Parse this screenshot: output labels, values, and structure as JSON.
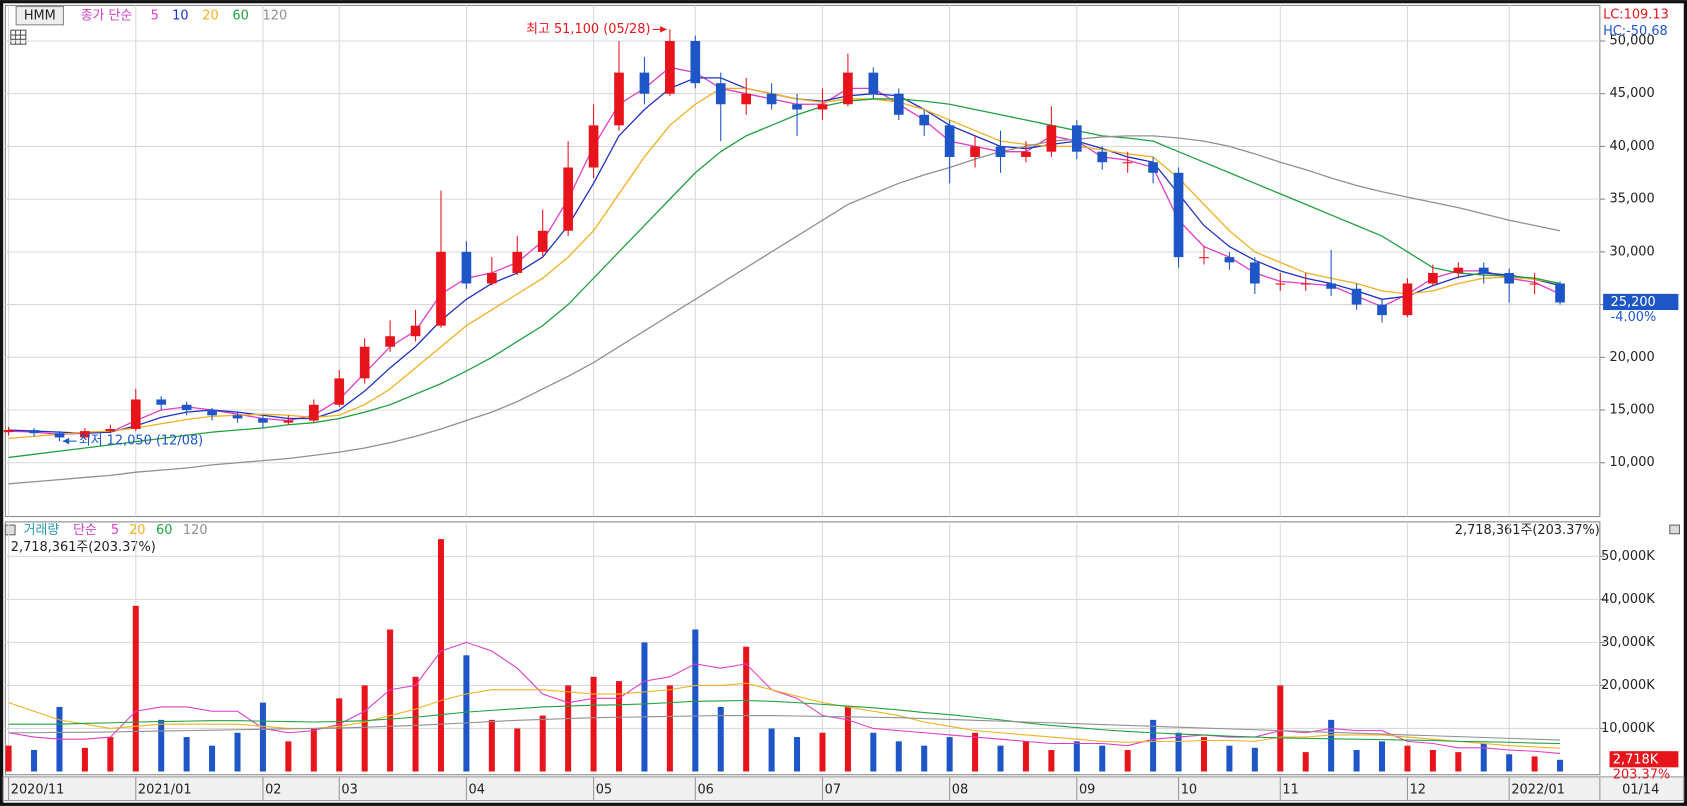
{
  "header": {
    "symbol": "HMM"
  },
  "chart_data": [
    {
      "type": "candlestick",
      "legend_prefix": "종가 단순",
      "up_color": "#e8141b",
      "down_color": "#1e56c8",
      "open": [
        12900,
        13100,
        12800,
        12400,
        13000,
        13200,
        16000,
        15500,
        15000,
        14500,
        14200,
        13800,
        14000,
        15500,
        18000,
        21000,
        22000,
        23000,
        30000,
        27000,
        28000,
        30000,
        32000,
        38000,
        42000,
        47000,
        45000,
        50000,
        46000,
        44000,
        45000,
        44000,
        43500,
        44000,
        47000,
        45000,
        43000,
        42000,
        39000,
        40000,
        39000,
        39500,
        42000,
        39500,
        38500,
        38500,
        37500,
        29500,
        29500,
        29000,
        27000,
        27000,
        27000,
        26500,
        25000,
        24000,
        27000,
        28000,
        28500,
        28000,
        27000,
        27000
      ],
      "high": [
        13400,
        13300,
        13000,
        13300,
        13600,
        17000,
        16300,
        15800,
        15200,
        14800,
        14500,
        14500,
        16000,
        18800,
        21800,
        23500,
        24500,
        35800,
        31000,
        29500,
        31500,
        34000,
        40500,
        44000,
        50000,
        48500,
        51100,
        50500,
        47000,
        46500,
        46000,
        45000,
        45500,
        48800,
        47500,
        45500,
        43500,
        42500,
        41000,
        41500,
        40500,
        43800,
        42500,
        40000,
        39500,
        39000,
        38000,
        30500,
        30000,
        29500,
        28000,
        28000,
        30200,
        27000,
        25500,
        27500,
        28800,
        29000,
        29000,
        28400,
        28000,
        27200
      ],
      "low": [
        12600,
        12500,
        12050,
        12300,
        12800,
        13000,
        15000,
        14500,
        14000,
        13800,
        13300,
        13600,
        13800,
        15300,
        17500,
        20500,
        21500,
        22800,
        26500,
        26800,
        27800,
        29500,
        31500,
        37000,
        41500,
        44000,
        44800,
        45500,
        40500,
        43000,
        43500,
        41000,
        42500,
        43800,
        44500,
        42500,
        41000,
        36500,
        38000,
        37500,
        38500,
        39000,
        38800,
        37800,
        37500,
        36500,
        28500,
        28800,
        28300,
        26000,
        26300,
        26300,
        25800,
        24500,
        23300,
        23800,
        26800,
        27500,
        27000,
        25200,
        26000,
        25000
      ],
      "close": [
        13100,
        12800,
        12400,
        13000,
        13200,
        16000,
        15500,
        15000,
        14500,
        14200,
        13800,
        14000,
        15500,
        18000,
        21000,
        22000,
        23000,
        30000,
        27000,
        28000,
        30000,
        32000,
        38000,
        42000,
        47000,
        45000,
        50000,
        46000,
        44000,
        45000,
        44000,
        43500,
        44000,
        47000,
        45000,
        43000,
        42000,
        39000,
        40000,
        39000,
        39500,
        42000,
        39500,
        38500,
        38500,
        37500,
        29500,
        29500,
        29000,
        27000,
        27000,
        27000,
        26500,
        25000,
        24000,
        27000,
        28000,
        28500,
        28000,
        27000,
        27000,
        25200
      ],
      "series": [
        {
          "name": "5",
          "color": "#e03cc8",
          "values": [
            13000,
            12900,
            12700,
            12800,
            12900,
            14000,
            15000,
            15300,
            15000,
            14600,
            14200,
            14000,
            14500,
            16000,
            18500,
            21000,
            22500,
            26000,
            27500,
            28000,
            29000,
            31000,
            35000,
            40000,
            44000,
            45500,
            47500,
            47000,
            45500,
            45000,
            44500,
            44000,
            44000,
            45500,
            45500,
            44000,
            42500,
            40500,
            40000,
            39500,
            39500,
            41000,
            40500,
            39000,
            38700,
            38000,
            33000,
            30500,
            29500,
            28000,
            27200,
            27000,
            26800,
            25800,
            24800,
            26000,
            27500,
            28200,
            28200,
            27500,
            27100,
            26000
          ]
        },
        {
          "name": "10",
          "color": "#2030c0",
          "values": [
            13100,
            13000,
            12900,
            12800,
            12900,
            13500,
            14300,
            14800,
            15000,
            14800,
            14500,
            14200,
            14200,
            15000,
            16800,
            19000,
            21000,
            23500,
            25500,
            27000,
            28000,
            29500,
            32500,
            36500,
            41000,
            43500,
            45500,
            46500,
            46500,
            45500,
            45000,
            44500,
            44300,
            44800,
            45000,
            44800,
            43500,
            42000,
            41000,
            40000,
            39800,
            40200,
            40500,
            39800,
            39000,
            38500,
            35500,
            32500,
            30500,
            29200,
            28200,
            27500,
            27000,
            26300,
            25500,
            25800,
            26800,
            27600,
            28000,
            27800,
            27400,
            26800
          ]
        },
        {
          "name": "20",
          "color": "#f0b020",
          "values": [
            12300,
            12500,
            12700,
            12900,
            13000,
            13300,
            13700,
            14100,
            14400,
            14500,
            14600,
            14500,
            14300,
            14500,
            15500,
            17000,
            19000,
            21000,
            23000,
            24500,
            26000,
            27500,
            29500,
            32000,
            35500,
            39000,
            42000,
            44000,
            45500,
            45500,
            45000,
            44500,
            44200,
            44500,
            44500,
            44200,
            43500,
            42500,
            41500,
            40500,
            40200,
            40000,
            40000,
            39700,
            39300,
            39000,
            37000,
            34500,
            32000,
            30000,
            29000,
            28000,
            27500,
            27000,
            26300,
            26000,
            26300,
            27000,
            27500,
            27600,
            27400,
            27000
          ]
        },
        {
          "name": "60",
          "color": "#20a040",
          "values": [
            10500,
            10800,
            11100,
            11400,
            11700,
            12000,
            12300,
            12600,
            12900,
            13100,
            13300,
            13600,
            13800,
            14200,
            14800,
            15500,
            16500,
            17500,
            18700,
            20000,
            21500,
            23000,
            25000,
            27500,
            30000,
            32500,
            35000,
            37500,
            39500,
            41000,
            42000,
            43000,
            43800,
            44300,
            44500,
            44500,
            44300,
            44000,
            43500,
            43000,
            42500,
            42000,
            41500,
            41000,
            40800,
            40500,
            39500,
            38500,
            37500,
            36500,
            35500,
            34500,
            33500,
            32500,
            31500,
            30000,
            28500,
            28000,
            27800,
            27700,
            27500,
            27000
          ]
        },
        {
          "name": "120",
          "color": "#909090",
          "values": [
            8000,
            8200,
            8400,
            8600,
            8800,
            9100,
            9300,
            9500,
            9800,
            10000,
            10200,
            10400,
            10700,
            11000,
            11400,
            11900,
            12500,
            13200,
            14000,
            14800,
            15800,
            17000,
            18200,
            19500,
            21000,
            22500,
            24000,
            25500,
            27000,
            28500,
            30000,
            31500,
            33000,
            34500,
            35500,
            36500,
            37300,
            38000,
            38800,
            39500,
            40000,
            40500,
            40700,
            40900,
            41000,
            41000,
            40800,
            40500,
            40000,
            39300,
            38500,
            37800,
            37000,
            36300,
            35700,
            35200,
            34700,
            34200,
            33600,
            33000,
            32500,
            32000
          ]
        }
      ],
      "ylim": [
        4900,
        53370
      ],
      "yticks": [
        {
          "value": 10000,
          "label": "10,000"
        },
        {
          "value": 15000,
          "label": "15,000"
        },
        {
          "value": 20000,
          "label": "20,000"
        },
        {
          "value": 25000,
          "label": "25,000"
        },
        {
          "value": 30000,
          "label": "30,000"
        },
        {
          "value": 35000,
          "label": "35,000"
        },
        {
          "value": 40000,
          "label": "40,000"
        },
        {
          "value": 45000,
          "label": "45,000"
        },
        {
          "value": 50000,
          "label": "50,000"
        }
      ],
      "grid": true,
      "annotations": {
        "high_label": "최고 51,100 (05/28)",
        "low_label": "최저 12,050 (12/08)"
      },
      "last_price_label": "25,200",
      "change_label": "-4.00%",
      "indicators": {
        "lc": "LC:109.13",
        "hc": "HC:-50.68"
      }
    },
    {
      "type": "bar",
      "legend_prefix": "거래량",
      "legend_method": "단순",
      "summary": "2,718,361주(203.37%)",
      "categories": [
        "2020/11",
        null,
        null,
        null,
        null,
        "2021/01",
        null,
        null,
        null,
        null,
        "02",
        null,
        null,
        "03",
        null,
        null,
        null,
        null,
        "04",
        null,
        null,
        null,
        null,
        "05",
        null,
        null,
        null,
        "06",
        null,
        null,
        null,
        null,
        "07",
        null,
        null,
        null,
        null,
        "08",
        null,
        null,
        null,
        null,
        "09",
        null,
        null,
        null,
        "10",
        null,
        null,
        null,
        "11",
        null,
        null,
        null,
        null,
        "12",
        null,
        null,
        null,
        "2022/01",
        null,
        null
      ],
      "values": [
        6000,
        5000,
        15000,
        5500,
        8000,
        38500,
        12000,
        8000,
        6000,
        9000,
        16000,
        7000,
        10000,
        17000,
        20000,
        33000,
        22000,
        54000,
        27000,
        12000,
        10000,
        13000,
        20000,
        22000,
        21000,
        30000,
        20000,
        33000,
        15000,
        29000,
        10000,
        8000,
        9000,
        15000,
        9000,
        7000,
        6000,
        8000,
        9000,
        6000,
        7000,
        5000,
        7000,
        6000,
        5000,
        12000,
        9000,
        8000,
        6000,
        5500,
        20000,
        4500,
        12000,
        5000,
        7000,
        6000,
        5000,
        4500,
        6500,
        4000,
        3500,
        2718
      ],
      "series": [
        {
          "name": "5",
          "color": "#e03cc8",
          "values": [
            9000,
            8000,
            7500,
            7500,
            8000,
            14000,
            15000,
            15000,
            14000,
            14000,
            10000,
            9000,
            9500,
            11000,
            14000,
            19000,
            20000,
            28000,
            30000,
            28000,
            24000,
            18000,
            16000,
            17000,
            17000,
            21000,
            22000,
            25000,
            24000,
            25000,
            19000,
            17000,
            13000,
            12000,
            10000,
            9500,
            9000,
            8500,
            8000,
            7500,
            7000,
            6500,
            6500,
            6500,
            6000,
            7500,
            8000,
            8500,
            8000,
            8000,
            9500,
            9000,
            10000,
            9500,
            9500,
            7000,
            6500,
            5500,
            5500,
            5000,
            4700,
            4200
          ]
        },
        {
          "name": "20",
          "color": "#f0b020",
          "values": [
            16000,
            14000,
            12000,
            11000,
            10000,
            10500,
            11000,
            11000,
            11000,
            11000,
            10500,
            10000,
            10000,
            10500,
            11500,
            13000,
            14500,
            16500,
            18000,
            19000,
            19000,
            19000,
            18500,
            18000,
            18000,
            18500,
            19000,
            20000,
            20000,
            20500,
            19000,
            17500,
            16000,
            15000,
            14000,
            13000,
            11500,
            10500,
            9500,
            9000,
            8500,
            8000,
            7500,
            7000,
            6800,
            7000,
            7000,
            7200,
            7200,
            7000,
            8000,
            8000,
            8500,
            8500,
            8500,
            8000,
            7500,
            7000,
            6500,
            6000,
            5700,
            5400
          ]
        },
        {
          "name": "60",
          "color": "#20a040",
          "values": [
            11000,
            11000,
            11000,
            11200,
            11300,
            11500,
            11600,
            11700,
            11800,
            11800,
            11700,
            11600,
            11500,
            11600,
            11800,
            12200,
            12600,
            13200,
            13800,
            14200,
            14600,
            15000,
            15200,
            15400,
            15500,
            15700,
            16000,
            16300,
            16400,
            16500,
            16300,
            16000,
            15600,
            15200,
            14800,
            14300,
            13700,
            13200,
            12600,
            12000,
            11300,
            10700,
            10200,
            9700,
            9300,
            9000,
            8700,
            8500,
            8200,
            8000,
            7800,
            7700,
            7600,
            7500,
            7400,
            7300,
            7200,
            7000,
            6900,
            6800,
            6600,
            6500
          ]
        },
        {
          "name": "120",
          "color": "#909090",
          "values": [
            9000,
            9000,
            9100,
            9100,
            9200,
            9300,
            9400,
            9500,
            9600,
            9700,
            9800,
            9900,
            10000,
            10100,
            10300,
            10500,
            10700,
            11000,
            11300,
            11600,
            11900,
            12100,
            12300,
            12500,
            12600,
            12700,
            12800,
            12900,
            13000,
            13000,
            13000,
            12900,
            12800,
            12700,
            12600,
            12500,
            12300,
            12100,
            11900,
            11700,
            11500,
            11300,
            11100,
            10900,
            10700,
            10500,
            10300,
            10100,
            9900,
            9700,
            9500,
            9300,
            9100,
            8900,
            8700,
            8500,
            8300,
            8100,
            7900,
            7700,
            7500,
            7300
          ]
        }
      ],
      "ylim": [
        0,
        58000
      ],
      "yticks": [
        {
          "value": 10000,
          "label": "10,000K"
        },
        {
          "value": 20000,
          "label": "20,000K"
        },
        {
          "value": 30000,
          "label": "30,000K"
        },
        {
          "value": 40000,
          "label": "40,000K"
        },
        {
          "value": 50000,
          "label": "50,000K"
        }
      ],
      "grid": true,
      "last_value_label": "2,718K",
      "ratio_label": "203.37%",
      "current_date": "01/14"
    }
  ]
}
